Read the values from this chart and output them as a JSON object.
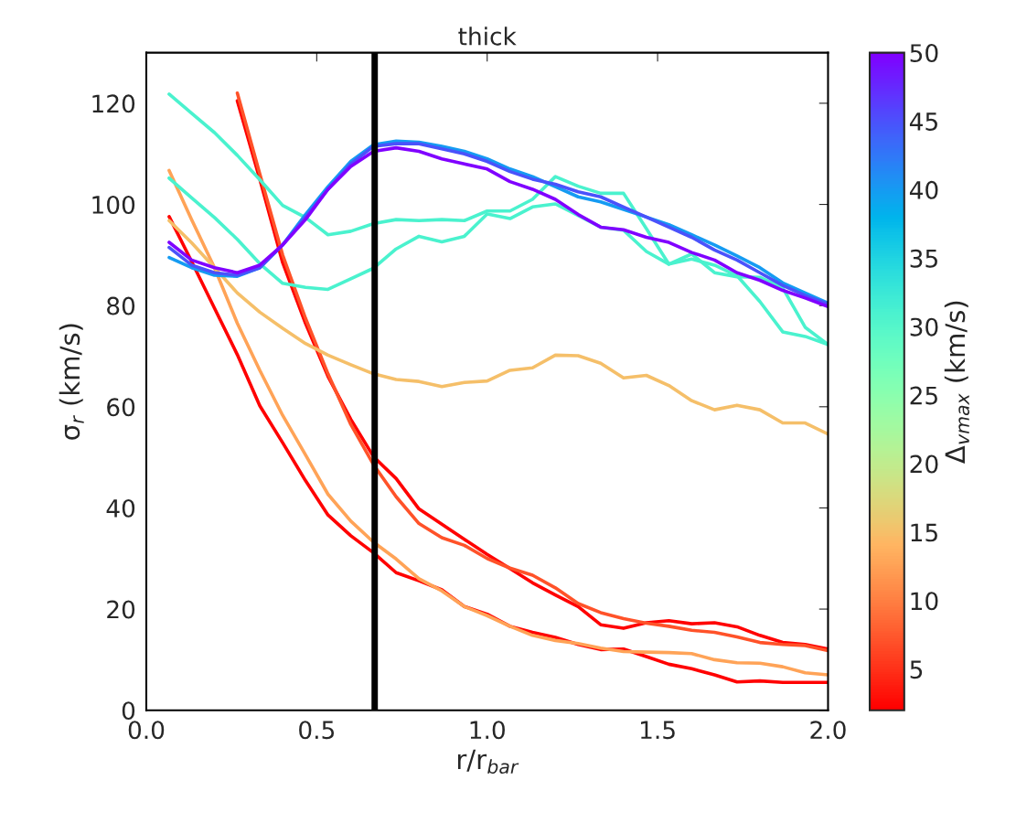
{
  "chart_data": {
    "type": "line",
    "title": "thick",
    "xlabel": "r/r$_{bar}$",
    "ylabel": "σ$_{r}$ (km/s)",
    "clabel": "Δ$_{vmax}$ (km/s)",
    "x": [
      0.067,
      0.133,
      0.2,
      0.267,
      0.333,
      0.4,
      0.467,
      0.533,
      0.6,
      0.667,
      0.733,
      0.8,
      0.867,
      0.933,
      1.0,
      1.067,
      1.133,
      1.2,
      1.267,
      1.333,
      1.4,
      1.467,
      1.533,
      1.6,
      1.667,
      1.733,
      1.8,
      1.867,
      1.933,
      2.0
    ],
    "xlim": [
      0,
      2
    ],
    "xticks": [
      {
        "value": 0,
        "label": "0.0"
      },
      {
        "value": 0.5,
        "label": "0.5"
      },
      {
        "value": 1,
        "label": "1.0"
      },
      {
        "value": 1.5,
        "label": "1.5"
      },
      {
        "value": 2,
        "label": "2.0"
      }
    ],
    "ylim": [
      0,
      130
    ],
    "yticks": [
      0,
      20,
      40,
      60,
      80,
      100,
      120
    ],
    "clim": [
      2,
      50
    ],
    "cticks": [
      5,
      10,
      15,
      20,
      25,
      30,
      35,
      40,
      45,
      50
    ],
    "grid": false,
    "legend": false,
    "ref_lines": [
      {
        "axis": "x",
        "value": 0.67,
        "color": "#000000"
      }
    ],
    "series": [
      {
        "color": "#8000ff",
        "values": [
          92.5,
          89,
          87.5,
          86.5,
          88,
          92,
          97,
          103,
          107.5,
          110.5,
          111.2,
          110.5,
          109,
          108,
          107,
          104.5,
          103,
          101,
          98,
          95.5,
          95,
          93.5,
          92.5,
          90.5,
          89,
          86.5,
          85,
          83,
          81.5,
          79.8
        ]
      },
      {
        "color": "#4a52fb",
        "values": [
          91.5,
          88,
          86.5,
          86,
          87.5,
          92,
          97.5,
          103,
          108,
          111.5,
          112,
          112,
          111,
          110,
          108.5,
          106.5,
          105,
          104,
          102.5,
          101.5,
          99.5,
          97.5,
          95.5,
          93.5,
          91,
          89,
          86.5,
          84,
          82,
          80.3
        ]
      },
      {
        "color": "#159bf2",
        "values": [
          89.5,
          87.5,
          86,
          85.8,
          87.5,
          92,
          98,
          103.5,
          108.5,
          111.8,
          112.5,
          112.3,
          111.5,
          110.5,
          109,
          107,
          105.5,
          103.5,
          101.5,
          100.5,
          99,
          97.5,
          96,
          94,
          92,
          89.8,
          87.5,
          84.5,
          82.5,
          80.5
        ]
      },
      {
        "color": "#4af2ce",
        "values": [
          121.8,
          118,
          114.2,
          109.7,
          104.9,
          99.8,
          97.4,
          94,
          94.7,
          96.2,
          97,
          96.8,
          97,
          96.8,
          98.7,
          98.7,
          101,
          105.5,
          103.6,
          102.2,
          102.2,
          95.2,
          88.2,
          90.2,
          86.5,
          85.7,
          85.6,
          83.5,
          75.7,
          72.3
        ]
      },
      {
        "color": "#4af2ce",
        "values": [
          105.2,
          101.3,
          97.4,
          93.1,
          88.3,
          84.4,
          83.6,
          83.2,
          85.3,
          87.4,
          91.2,
          93.7,
          92.6,
          93.7,
          98.1,
          97.2,
          99.5,
          100.1,
          97.8,
          95.5,
          94.9,
          90.7,
          88.2,
          89.2,
          88,
          85.9,
          80.8,
          74.8,
          73.9,
          72.3
        ]
      },
      {
        "color": "#f5bf69",
        "values": [
          96.8,
          92.4,
          87.5,
          82.5,
          78.7,
          75.5,
          72.5,
          70.2,
          68.3,
          66.5,
          65.4,
          65,
          64,
          64.8,
          65.1,
          67.2,
          67.7,
          70.2,
          70.1,
          68.6,
          65.7,
          66.2,
          64.2,
          61.2,
          59.4,
          60.3,
          59.4,
          56.8,
          56.8,
          54.6
        ]
      },
      {
        "color": "#ffa357",
        "values": [
          106.7,
          97,
          87.5,
          76.5,
          67.2,
          58.3,
          50.5,
          42.7,
          37.4,
          33.2,
          29.9,
          26,
          23.6,
          20.5,
          18.7,
          16.6,
          14.8,
          13.8,
          13.2,
          12.3,
          11.6,
          11.5,
          11.4,
          11.2,
          10,
          9.4,
          9.3,
          8.6,
          7.4,
          7
        ]
      },
      {
        "color": "#ff0000",
        "values": [
          97.6,
          88.7,
          79.5,
          70.3,
          60.2,
          52.9,
          45.4,
          38.6,
          34.5,
          31.1,
          27.2,
          25.6,
          23.8,
          20.5,
          19,
          16.6,
          15.4,
          14.4,
          13,
          12,
          12.1,
          10.6,
          9.1,
          8.2,
          7,
          5.6,
          5.8,
          5.5,
          5.5,
          5.5
        ]
      },
      {
        "color": "#ff5229",
        "values": [
          null,
          null,
          null,
          122,
          106,
          90,
          77.5,
          66.5,
          56.5,
          48.5,
          42.2,
          36.9,
          34.1,
          32.6,
          30,
          28.1,
          26.7,
          24.2,
          21.1,
          19.3,
          18.1,
          17.2,
          16.6,
          15.8,
          15.4,
          14.5,
          13.4,
          13,
          12.8,
          11.8
        ]
      },
      {
        "color": "#ff0000",
        "values": [
          null,
          null,
          null,
          120.5,
          105,
          88.5,
          76.5,
          66,
          57.5,
          50.1,
          45.8,
          39.8,
          36.8,
          33.8,
          30.8,
          28,
          25.2,
          22.8,
          20.5,
          16.9,
          16.2,
          17.3,
          17.7,
          17.1,
          17.3,
          16.5,
          14.8,
          13.4,
          13,
          12.1
        ]
      }
    ]
  }
}
